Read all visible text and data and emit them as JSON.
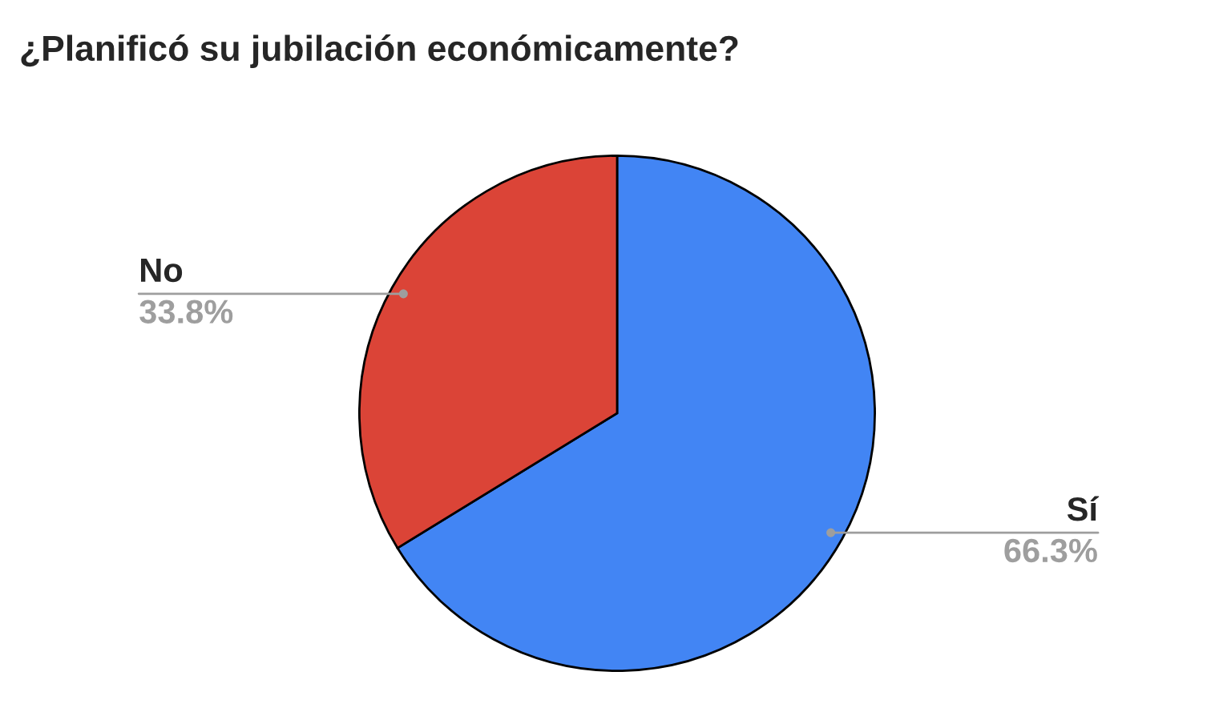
{
  "chart_data": {
    "type": "pie",
    "title": "¿Planificó su jubilación económicamente?",
    "categories": [
      "Sí",
      "No"
    ],
    "values": [
      66.3,
      33.8
    ],
    "colors": [
      "#4285f4",
      "#db4437"
    ],
    "value_labels": [
      "66.3%",
      "33.8%"
    ],
    "legend": false
  }
}
